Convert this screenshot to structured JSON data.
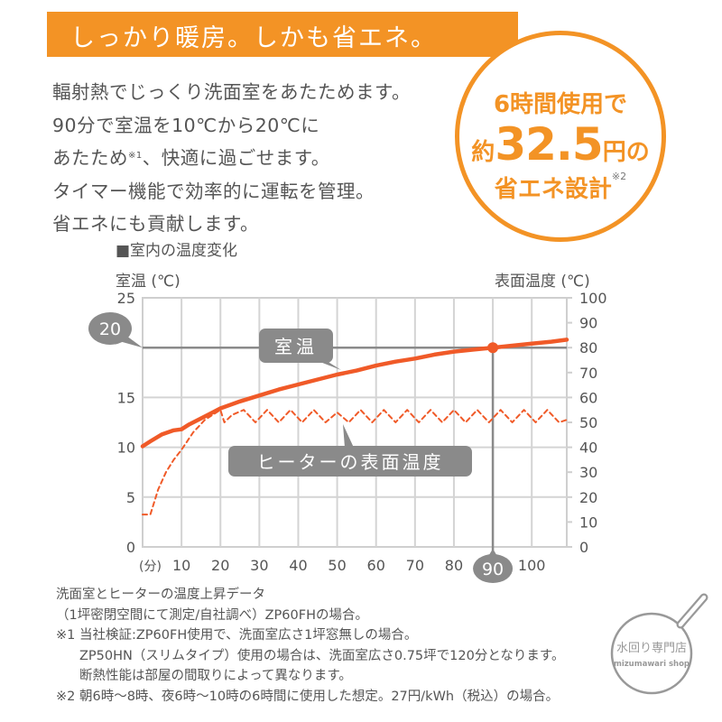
{
  "banner": {
    "title": "しっかり暖房。しかも省エネ。"
  },
  "body": {
    "lines": [
      "輻射熱でじっくり洗面室をあたためます。",
      "90分で室温を10℃から20℃に",
      "あたため",
      "、快適に過ごせます。",
      "タイマー機能で効率的に運転を管理。",
      "省エネにも貢献します。"
    ],
    "note_ref_1": "※1"
  },
  "badge": {
    "line1": "6時間使用で",
    "prefix": "約",
    "amount": "32.5",
    "suffix": "円の",
    "line3": "省エネ設計",
    "note_ref_2": "※2",
    "color": "#f39325"
  },
  "chart_data": {
    "type": "line",
    "title": "■室内の温度変化",
    "xlabel": "(分)",
    "ylabel_left": "室温 (℃)",
    "ylabel_right": "表面温度 (℃)",
    "x_ticks": [
      10,
      20,
      30,
      40,
      50,
      60,
      70,
      80,
      90,
      100
    ],
    "x_range": [
      0,
      109
    ],
    "y_left_ticks": [
      0,
      5,
      10,
      15,
      20,
      25
    ],
    "y_left_range": [
      0,
      25
    ],
    "y_right_ticks": [
      0,
      10,
      20,
      30,
      40,
      50,
      60,
      70,
      80,
      90,
      100
    ],
    "y_right_range": [
      0,
      100
    ],
    "grid": true,
    "highlight": {
      "y_left": 20,
      "x": 90,
      "y_label": "20",
      "x_label": "90"
    },
    "series": [
      {
        "name": "室温",
        "axis": "left",
        "style": "solid",
        "color": "#f05a28",
        "x": [
          0,
          2,
          5,
          8,
          10,
          12,
          15,
          18,
          20,
          25,
          30,
          35,
          40,
          45,
          50,
          55,
          60,
          65,
          70,
          75,
          80,
          85,
          90,
          95,
          100,
          105,
          109
        ],
        "y": [
          10.1,
          10.6,
          11.3,
          11.7,
          11.8,
          12.3,
          12.9,
          13.5,
          13.9,
          14.6,
          15.2,
          15.8,
          16.3,
          16.8,
          17.3,
          17.7,
          18.2,
          18.6,
          18.9,
          19.3,
          19.6,
          19.8,
          20.0,
          20.2,
          20.4,
          20.6,
          20.8
        ]
      },
      {
        "name": "ヒーターの表面温度",
        "axis": "right",
        "style": "dashed",
        "color": "#f05a28",
        "x": [
          0,
          2,
          4,
          6,
          8,
          10,
          13,
          16,
          20,
          21,
          23,
          26,
          29,
          32,
          35,
          38,
          41,
          44,
          47,
          50,
          53,
          56,
          59,
          62,
          65,
          68,
          71,
          74,
          77,
          80,
          83,
          86,
          89,
          92,
          95,
          98,
          101,
          104,
          107,
          109
        ],
        "y": [
          13,
          13,
          23,
          30,
          35,
          39,
          46,
          51,
          55,
          50,
          53,
          55,
          50,
          55,
          50,
          55,
          50,
          55,
          50,
          54,
          50,
          55,
          50,
          55,
          50,
          55,
          50,
          55,
          50,
          55,
          50,
          55,
          50,
          55,
          50,
          55,
          50,
          55,
          50,
          51
        ]
      }
    ],
    "annotations": [
      {
        "text": "室温",
        "points_to": "室温"
      },
      {
        "text": "ヒーターの表面温度",
        "points_to": "ヒーターの表面温度"
      }
    ]
  },
  "chart": {
    "title": "■室内の温度変化",
    "y_left_title": "室温 (℃)",
    "y_right_title": "表面温度 (℃)",
    "x_unit": "(分)",
    "label_room": "室温",
    "label_heater": "ヒーターの表面温度",
    "callout_20": "20",
    "callout_90": "90"
  },
  "footnotes": {
    "l1": "洗面室とヒーターの温度上昇データ",
    "l2": "（1坪密閉空間にて測定/自社調べ）ZP60FHの場合。",
    "l3": "※1 当社検証:ZP60FH使用で、洗面室広さ1坪窓無しの場合。",
    "l4": "ZP50HN（スリムタイプ）使用の場合は、洗面室広さ0.75坪で120分となります。",
    "l5": "断熱性能は部屋の間取りによって異なります。",
    "l6": "※2 朝6時〜8時、夜6時〜10時の6時間に使用した想定。27円/kWh（税込）の場合。"
  },
  "watermark": {
    "jp": "水回り専門店",
    "en": "mizumawari shop"
  }
}
